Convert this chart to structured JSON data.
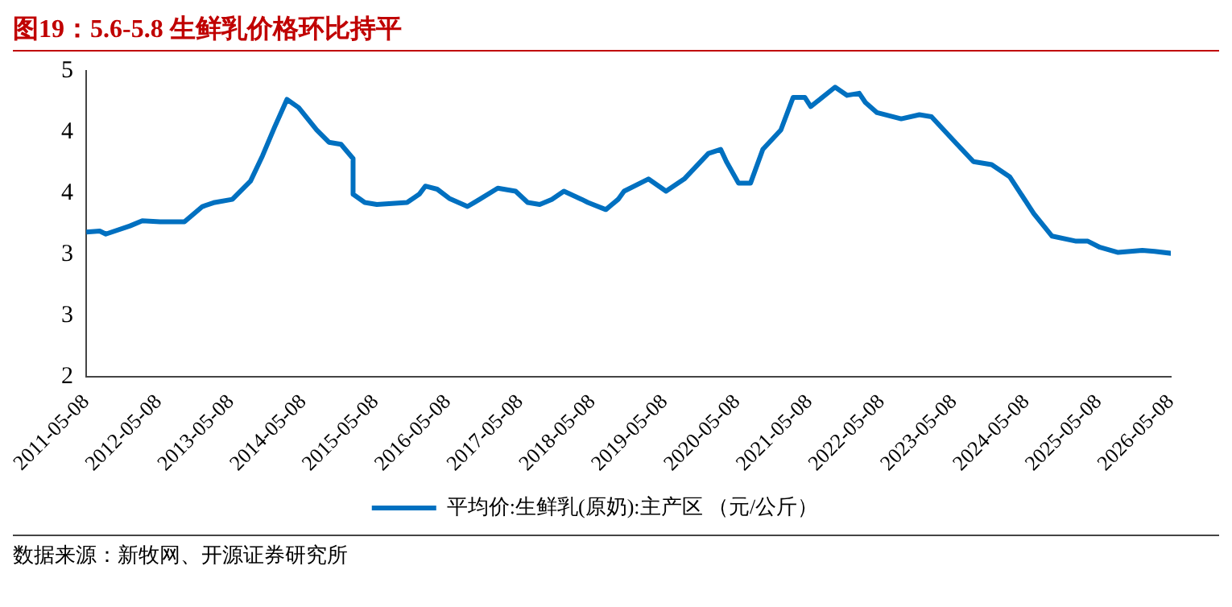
{
  "chart_data": {
    "type": "line",
    "title": "图19：5.6-5.8 生鲜乳价格环比持平",
    "x": [
      "2011-05-08",
      "2011-07",
      "2011-08",
      "2011-12",
      "2012-02",
      "2012-05",
      "2012-09",
      "2012-12",
      "2013-02",
      "2013-05",
      "2013-08",
      "2013-10",
      "2013-12",
      "2014-02",
      "2014-04",
      "2014-07",
      "2014-09",
      "2014-11",
      "2015-01",
      "2015-01-15",
      "2015-03",
      "2015-05",
      "2015-10",
      "2015-12",
      "2016-01",
      "2016-03",
      "2016-05",
      "2016-08",
      "2016-10",
      "2017-01",
      "2017-04",
      "2017-06",
      "2017-08",
      "2017-10",
      "2017-12",
      "2018-03",
      "2018-04",
      "2018-07",
      "2018-09",
      "2018-10",
      "2019-02",
      "2019-05",
      "2019-08",
      "2019-12",
      "2020-02",
      "2020-03",
      "2020-05",
      "2020-07",
      "2020-09",
      "2020-12",
      "2021-02",
      "2021-04",
      "2021-05",
      "2021-09",
      "2021-11",
      "2022-01",
      "2022-02",
      "2022-04",
      "2022-08",
      "2022-11",
      "2023-01",
      "2023-05",
      "2023-08",
      "2023-11",
      "2024-02",
      "2024-06",
      "2024-09",
      "2025-01",
      "2025-03",
      "2025-05",
      "2025-08",
      "2025-12",
      "2026-02",
      "2026-05"
    ],
    "series": [
      {
        "name": "平均价:生鲜乳(原奶):主产区 （元/公斤）",
        "color": "#0070c0",
        "values": [
          3.42,
          3.43,
          3.4,
          3.48,
          3.53,
          3.52,
          3.52,
          3.67,
          3.71,
          3.74,
          3.92,
          4.17,
          4.45,
          4.72,
          4.64,
          4.42,
          4.3,
          4.28,
          4.14,
          3.79,
          3.71,
          3.69,
          3.71,
          3.79,
          3.87,
          3.84,
          3.75,
          3.67,
          3.74,
          3.85,
          3.82,
          3.71,
          3.69,
          3.74,
          3.82,
          3.74,
          3.71,
          3.64,
          3.74,
          3.82,
          3.94,
          3.82,
          3.94,
          4.19,
          4.23,
          4.11,
          3.9,
          3.9,
          4.23,
          4.42,
          4.74,
          4.74,
          4.65,
          4.84,
          4.76,
          4.78,
          4.69,
          4.59,
          4.53,
          4.57,
          4.55,
          4.3,
          4.11,
          4.08,
          3.96,
          3.6,
          3.38,
          3.33,
          3.33,
          3.27,
          3.22,
          3.24,
          3.23,
          3.21
        ]
      }
    ],
    "xlim": [
      "2011-05-08",
      "2026-05-08"
    ],
    "xticks": [
      "2011-05-08",
      "2012-05-08",
      "2013-05-08",
      "2014-05-08",
      "2015-05-08",
      "2016-05-08",
      "2017-05-08",
      "2018-05-08",
      "2019-05-08",
      "2020-05-08",
      "2021-05-08",
      "2022-05-08",
      "2023-05-08",
      "2024-05-08",
      "2025-05-08",
      "2026-05-08"
    ],
    "ylim": [
      2,
      5
    ],
    "yticks": [
      2,
      {
        "value": 2.6,
        "label": "3"
      },
      {
        "value": 3.2,
        "label": "3"
      },
      {
        "value": 3.8,
        "label": "4"
      },
      {
        "value": 4.4,
        "label": "4"
      },
      5
    ],
    "grid": false,
    "legend": "bottom",
    "marker": "none",
    "line_style": "solid",
    "annotations": [
      "数据来源：新牧网、开源证券研究所"
    ]
  }
}
